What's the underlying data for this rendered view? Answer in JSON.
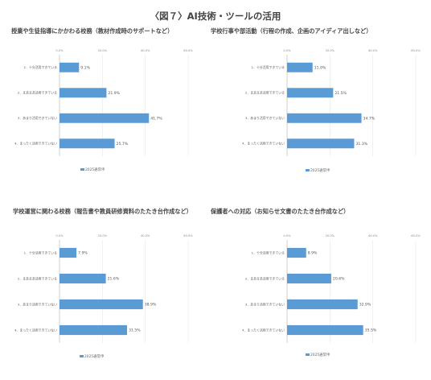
{
  "page": {
    "title": "〈図７〉AI技術・ツールの活用"
  },
  "chart_data": [
    {
      "type": "bar",
      "orientation": "horizontal",
      "title": "授業や生徒指導にかかわる校務（教材作成時のサポートなど）",
      "categories": [
        "1．十分活用できている",
        "2．まあまあ活用できている",
        "3．あまり活用できていない",
        "4．まったく活用できていない"
      ],
      "values": [
        9.1,
        21.9,
        41.7,
        25.7
      ],
      "value_labels": [
        "9.1%",
        "21.9%",
        "41.7%",
        "25.7%"
      ],
      "xlim": [
        0,
        60
      ],
      "ticks": [
        "0.0%",
        "20.0%",
        "40.0%",
        "60.0%"
      ],
      "legend": "2025通常申",
      "color": "#5b9bd5"
    },
    {
      "type": "bar",
      "orientation": "horizontal",
      "title": "学校行事や部活動（行程の作成、企画のアイディア出しなど）",
      "categories": [
        "1．十分活用できている",
        "2．まあまあ活用できている",
        "3．あまり活用できていない",
        "4．まったく活用できていない"
      ],
      "values": [
        11.9,
        21.5,
        34.7,
        31.3
      ],
      "value_labels": [
        "11.9%",
        "21.5%",
        "34.7%",
        "31.3%"
      ],
      "xlim": [
        0,
        60
      ],
      "ticks": [
        "0.0%",
        "20.0%",
        "40.0%",
        "60.0%"
      ],
      "legend": "2025通常申",
      "color": "#5b9bd5"
    },
    {
      "type": "bar",
      "orientation": "horizontal",
      "title": "学校運営に関わる校務（報告書や教員研修資料のたたき台作成など）",
      "categories": [
        "1．十分活用できている",
        "2．まあまあ活用できている",
        "3．あまり活用できていない",
        "4．まったく活用できていない"
      ],
      "values": [
        7.9,
        21.6,
        38.9,
        31.5
      ],
      "value_labels": [
        "7.9%",
        "21.6%",
        "38.9%",
        "31.5%"
      ],
      "xlim": [
        0,
        60
      ],
      "ticks": [
        "0.0%",
        "20.0%",
        "40.0%",
        "60.0%"
      ],
      "legend": "2025通常申",
      "color": "#5b9bd5"
    },
    {
      "type": "bar",
      "orientation": "horizontal",
      "title": "保護者への対応（お知らせ文書のたたき台作成など）",
      "categories": [
        "1．十分活用できている",
        "2．まあまあ活用できている",
        "3．あまり活用できていない",
        "4．まったく活用できていない"
      ],
      "values": [
        8.9,
        20.6,
        32.9,
        35.5
      ],
      "value_labels": [
        "8.9%",
        "20.6%",
        "32.9%",
        "35.5%"
      ],
      "xlim": [
        0,
        60
      ],
      "ticks": [
        "0.0%",
        "20.0%",
        "40.0%",
        "60.0%"
      ],
      "legend": "2025通常申",
      "color": "#5b9bd5"
    }
  ]
}
